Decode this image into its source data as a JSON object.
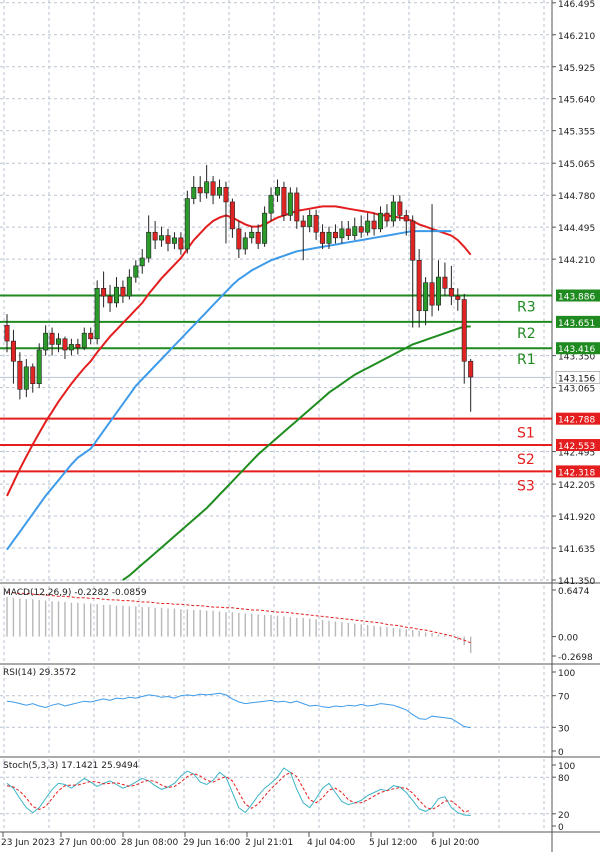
{
  "colors": {
    "background": "#ffffff",
    "grid": "#b9c3d3",
    "candle_up": "#2a9a2a",
    "candle_down": "#e02424",
    "ma_fast": "#e41e1e",
    "ma_mid": "#3d9be9",
    "ma_slow": "#1e8c1e",
    "resistance": "#1f8a1f",
    "support": "#e41e1e",
    "price_line": "#b8c4d4",
    "macd_bars": "#b8b8b8",
    "macd_signal": "#e41e1e",
    "rsi_line": "#3d9be9",
    "stoch_main": "#3db5c8",
    "stoch_signal": "#e41e1e",
    "axis_text": "#222222",
    "sr_label": "#ffffff"
  },
  "chart_data": [
    {
      "type": "candlestick",
      "pane": "price",
      "ylim": [
        141.35,
        146.52
      ],
      "yticks": [
        "146.495",
        "146.210",
        "145.925",
        "145.640",
        "145.355",
        "145.065",
        "144.780",
        "144.495",
        "144.210",
        "143.350",
        "143.065",
        "142.495",
        "142.205",
        "141.920",
        "141.635",
        "141.350"
      ],
      "xticks": [
        "23 Jun 2023",
        "27 Jun 00:00",
        "28 Jun 08:00",
        "29 Jun 16:00",
        "2 Jul 21:01",
        "4 Jul 04:00",
        "5 Jul 12:00",
        "6 Jul 20:00"
      ],
      "current_price": 143.156,
      "current_price_label": "143.156",
      "levels": [
        {
          "name": "R3",
          "value": 143.886,
          "label": "143.886",
          "kind": "resistance"
        },
        {
          "name": "R2",
          "value": 143.651,
          "label": "143.651",
          "kind": "resistance"
        },
        {
          "name": "R1",
          "value": 143.416,
          "label": "143.416",
          "kind": "resistance"
        },
        {
          "name": "S1",
          "value": 142.788,
          "label": "142.788",
          "kind": "support"
        },
        {
          "name": "S2",
          "value": 142.553,
          "label": "142.553",
          "kind": "support"
        },
        {
          "name": "S3",
          "value": 142.318,
          "label": "142.318",
          "kind": "support"
        }
      ],
      "candles": [
        [
          143.62,
          143.48,
          143.72,
          143.38
        ],
        [
          143.48,
          143.3,
          143.58,
          143.1
        ],
        [
          143.3,
          143.05,
          143.38,
          142.96
        ],
        [
          143.05,
          143.25,
          143.32,
          142.98
        ],
        [
          143.25,
          143.1,
          143.28,
          143.02
        ],
        [
          143.1,
          143.4,
          143.46,
          143.06
        ],
        [
          143.4,
          143.55,
          143.62,
          143.35
        ],
        [
          143.55,
          143.45,
          143.6,
          143.35
        ],
        [
          143.45,
          143.5,
          143.55,
          143.38
        ],
        [
          143.5,
          143.4,
          143.52,
          143.32
        ],
        [
          143.4,
          143.45,
          143.5,
          143.35
        ],
        [
          143.45,
          143.42,
          143.5,
          143.36
        ],
        [
          143.42,
          143.55,
          143.6,
          143.4
        ],
        [
          143.55,
          143.5,
          143.6,
          143.45
        ],
        [
          143.5,
          143.95,
          144.02,
          143.45
        ],
        [
          143.95,
          143.88,
          144.1,
          143.78
        ],
        [
          143.88,
          143.82,
          143.98,
          143.74
        ],
        [
          143.82,
          143.96,
          144.05,
          143.78
        ],
        [
          143.96,
          143.88,
          144.02,
          143.82
        ],
        [
          143.88,
          144.05,
          144.12,
          143.85
        ],
        [
          144.05,
          144.15,
          144.2,
          144.0
        ],
        [
          144.15,
          144.22,
          144.3,
          144.08
        ],
        [
          144.22,
          144.45,
          144.6,
          144.18
        ],
        [
          144.45,
          144.38,
          144.55,
          144.3
        ],
        [
          144.38,
          144.42,
          144.5,
          144.32
        ],
        [
          144.42,
          144.35,
          144.48,
          144.28
        ],
        [
          144.35,
          144.4,
          144.45,
          144.3
        ],
        [
          144.4,
          144.3,
          144.45,
          144.25
        ],
        [
          144.3,
          144.75,
          144.82,
          144.26
        ],
        [
          144.75,
          144.85,
          144.95,
          144.7
        ],
        [
          144.85,
          144.8,
          144.95,
          144.72
        ],
        [
          144.8,
          144.9,
          145.05,
          144.75
        ],
        [
          144.9,
          144.78,
          144.95,
          144.7
        ],
        [
          144.78,
          144.85,
          144.92,
          144.75
        ],
        [
          144.85,
          144.72,
          144.9,
          144.35
        ],
        [
          144.72,
          144.48,
          144.75,
          144.4
        ],
        [
          144.48,
          144.3,
          144.55,
          144.22
        ],
        [
          144.3,
          144.4,
          144.45,
          144.25
        ],
        [
          144.4,
          144.45,
          144.5,
          144.35
        ],
        [
          144.45,
          144.35,
          144.52,
          144.3
        ],
        [
          144.35,
          144.62,
          144.68,
          144.32
        ],
        [
          144.62,
          144.78,
          144.85,
          144.55
        ],
        [
          144.78,
          144.85,
          144.92,
          144.72
        ],
        [
          144.85,
          144.6,
          144.9,
          144.55
        ],
        [
          144.6,
          144.8,
          144.85,
          144.55
        ],
        [
          144.8,
          144.55,
          144.85,
          144.48
        ],
        [
          144.55,
          144.5,
          144.6,
          144.2
        ],
        [
          144.5,
          144.6,
          144.65,
          144.45
        ],
        [
          144.6,
          144.45,
          144.65,
          144.38
        ],
        [
          144.45,
          144.35,
          144.52,
          144.3
        ],
        [
          144.35,
          144.45,
          144.5,
          144.3
        ],
        [
          144.45,
          144.4,
          144.52,
          144.35
        ],
        [
          144.4,
          144.48,
          144.55,
          144.35
        ],
        [
          144.48,
          144.42,
          144.55,
          144.38
        ],
        [
          144.42,
          144.5,
          144.58,
          144.38
        ],
        [
          144.5,
          144.45,
          144.6,
          144.4
        ],
        [
          144.45,
          144.55,
          144.62,
          144.42
        ],
        [
          144.55,
          144.48,
          144.62,
          144.42
        ],
        [
          144.48,
          144.62,
          144.68,
          144.45
        ],
        [
          144.62,
          144.55,
          144.7,
          144.5
        ],
        [
          144.55,
          144.72,
          144.78,
          144.5
        ],
        [
          144.72,
          144.6,
          144.78,
          144.55
        ],
        [
          144.6,
          144.55,
          144.65,
          144.42
        ],
        [
          144.55,
          144.2,
          144.6,
          143.6
        ],
        [
          144.2,
          143.75,
          144.3,
          143.6
        ],
        [
          143.75,
          144.0,
          144.05,
          143.62
        ],
        [
          144.0,
          143.8,
          144.7,
          143.7
        ],
        [
          143.8,
          144.05,
          144.2,
          143.75
        ],
        [
          144.05,
          143.95,
          144.18,
          143.88
        ],
        [
          143.95,
          143.88,
          144.15,
          143.8
        ],
        [
          143.88,
          143.85,
          143.95,
          143.75
        ],
        [
          143.85,
          143.3,
          143.9,
          143.1
        ],
        [
          143.3,
          143.16,
          143.32,
          142.85
        ]
      ],
      "series": [
        {
          "name": "",
          "kind": "ma_fast",
          "values": [
            142.1,
            142.22,
            142.34,
            142.45,
            142.56,
            142.66,
            142.76,
            142.85,
            142.94,
            143.02,
            143.1,
            143.17,
            143.24,
            143.3,
            143.38,
            143.45,
            143.52,
            143.58,
            143.64,
            143.7,
            143.76,
            143.82,
            143.9,
            143.97,
            144.04,
            144.1,
            144.16,
            144.22,
            144.3,
            144.38,
            144.44,
            144.5,
            144.55,
            144.58,
            144.6,
            144.58,
            144.55,
            144.52,
            144.5,
            144.5,
            144.52,
            144.55,
            144.58,
            144.6,
            144.62,
            144.64,
            144.65,
            144.66,
            144.67,
            144.68,
            144.68,
            144.68,
            144.67,
            144.66,
            144.65,
            144.64,
            144.63,
            144.62,
            144.6,
            144.6,
            144.59,
            144.58,
            144.57,
            144.55,
            144.52,
            144.5,
            144.48,
            144.46,
            144.44,
            144.42,
            144.38,
            144.32,
            144.25
          ]
        },
        {
          "name": "",
          "kind": "ma_mid",
          "values": [
            141.62,
            141.7,
            141.78,
            141.86,
            141.94,
            142.02,
            142.1,
            142.17,
            142.24,
            142.31,
            142.38,
            142.44,
            142.48,
            142.52,
            142.6,
            142.68,
            142.76,
            142.84,
            142.92,
            143.0,
            143.08,
            143.14,
            143.2,
            143.26,
            143.32,
            143.38,
            143.44,
            143.5,
            143.56,
            143.62,
            143.68,
            143.74,
            143.8,
            143.86,
            143.92,
            143.98,
            144.03,
            144.07,
            144.11,
            144.14,
            144.17,
            144.2,
            144.22,
            144.24,
            144.26,
            144.28,
            144.29,
            144.3,
            144.31,
            144.32,
            144.33,
            144.34,
            144.35,
            144.36,
            144.37,
            144.38,
            144.39,
            144.4,
            144.41,
            144.42,
            144.43,
            144.44,
            144.45,
            144.46,
            144.46,
            144.46,
            144.46,
            144.46,
            144.46,
            144.46,
            null,
            null,
            null
          ]
        },
        {
          "name": "",
          "kind": "ma_slow",
          "values": [
            null,
            null,
            null,
            null,
            null,
            null,
            null,
            null,
            null,
            null,
            null,
            null,
            null,
            null,
            null,
            null,
            null,
            null,
            141.35,
            141.39,
            141.44,
            141.49,
            141.54,
            141.59,
            141.64,
            141.69,
            141.74,
            141.79,
            141.84,
            141.89,
            141.94,
            141.99,
            142.05,
            142.11,
            142.17,
            142.23,
            142.29,
            142.35,
            142.41,
            142.47,
            142.52,
            142.57,
            142.62,
            142.67,
            142.72,
            142.77,
            142.82,
            142.87,
            142.92,
            142.97,
            143.02,
            143.06,
            143.1,
            143.14,
            143.18,
            143.21,
            143.24,
            143.27,
            143.3,
            143.33,
            143.36,
            143.39,
            143.42,
            143.45,
            143.47,
            143.49,
            143.51,
            143.53,
            143.55,
            143.57,
            143.59,
            143.61,
            143.61
          ]
        }
      ]
    },
    {
      "type": "bar",
      "pane": "macd",
      "title": "MACD(12,26,9) -0.2282 -0.0859",
      "yticks": [
        "0.6474",
        "0.00",
        "-0.2698"
      ],
      "ylim": [
        -0.2698,
        0.6474
      ],
      "values": [
        0.55,
        0.54,
        0.53,
        0.52,
        0.52,
        0.51,
        0.5,
        0.49,
        0.49,
        0.48,
        0.47,
        0.47,
        0.46,
        0.46,
        0.45,
        0.44,
        0.44,
        0.43,
        0.43,
        0.42,
        0.42,
        0.41,
        0.41,
        0.4,
        0.4,
        0.39,
        0.39,
        0.38,
        0.38,
        0.37,
        0.37,
        0.36,
        0.36,
        0.35,
        0.34,
        0.34,
        0.33,
        0.32,
        0.32,
        0.31,
        0.3,
        0.3,
        0.29,
        0.28,
        0.27,
        0.26,
        0.26,
        0.25,
        0.24,
        0.23,
        0.22,
        0.21,
        0.2,
        0.19,
        0.18,
        0.17,
        0.16,
        0.15,
        0.14,
        0.13,
        0.12,
        0.11,
        0.1,
        0.09,
        0.08,
        0.06,
        0.05,
        0.03,
        0.02,
        0.01,
        -0.05,
        -0.12,
        -0.2282
      ],
      "signal": [
        0.62,
        0.61,
        0.6,
        0.6,
        0.59,
        0.58,
        0.58,
        0.57,
        0.56,
        0.56,
        0.55,
        0.54,
        0.54,
        0.53,
        0.53,
        0.52,
        0.51,
        0.51,
        0.5,
        0.5,
        0.49,
        0.48,
        0.48,
        0.47,
        0.46,
        0.46,
        0.45,
        0.45,
        0.44,
        0.43,
        0.43,
        0.42,
        0.41,
        0.41,
        0.4,
        0.4,
        0.39,
        0.38,
        0.37,
        0.37,
        0.36,
        0.35,
        0.34,
        0.34,
        0.33,
        0.32,
        0.31,
        0.3,
        0.29,
        0.28,
        0.27,
        0.26,
        0.25,
        0.24,
        0.23,
        0.22,
        0.21,
        0.2,
        0.19,
        0.17,
        0.16,
        0.15,
        0.13,
        0.12,
        0.1,
        0.09,
        0.07,
        0.05,
        0.03,
        0.01,
        -0.02,
        -0.05,
        -0.0859
      ]
    },
    {
      "type": "line",
      "pane": "rsi",
      "title": "RSI(14) 29.3572",
      "yticks": [
        "100",
        "70",
        "30",
        "0"
      ],
      "ylim": [
        0,
        100
      ],
      "values": [
        63,
        62,
        60,
        58,
        60,
        57,
        55,
        58,
        60,
        57,
        59,
        61,
        63,
        62,
        64,
        66,
        64,
        67,
        66,
        68,
        67,
        69,
        71,
        70,
        68,
        69,
        67,
        70,
        71,
        70,
        72,
        71,
        72,
        73,
        71,
        66,
        62,
        60,
        61,
        62,
        63,
        64,
        62,
        63,
        61,
        63,
        60,
        57,
        58,
        56,
        55,
        57,
        56,
        58,
        57,
        59,
        57,
        58,
        60,
        59,
        58,
        55,
        52,
        46,
        41,
        40,
        44,
        43,
        42,
        41,
        36,
        31,
        29.36
      ]
    },
    {
      "type": "line",
      "pane": "stoch",
      "title": "Stoch(5,3,3) 17.1421 25.9494",
      "yticks": [
        "100",
        "80",
        "20",
        "0"
      ],
      "ylim": [
        0,
        100
      ],
      "values": [
        70,
        62,
        45,
        30,
        22,
        30,
        45,
        60,
        70,
        68,
        62,
        70,
        78,
        72,
        65,
        70,
        74,
        68,
        62,
        66,
        72,
        78,
        74,
        66,
        60,
        64,
        70,
        82,
        90,
        85,
        72,
        68,
        75,
        88,
        80,
        55,
        30,
        22,
        35,
        50,
        62,
        70,
        80,
        95,
        88,
        60,
        38,
        30,
        45,
        62,
        70,
        55,
        40,
        35,
        38,
        42,
        50,
        55,
        60,
        58,
        66,
        64,
        55,
        42,
        28,
        24,
        30,
        45,
        48,
        30,
        22,
        18,
        17.14
      ],
      "signal": [
        66,
        64,
        57,
        46,
        32,
        27,
        32,
        45,
        58,
        66,
        67,
        67,
        70,
        73,
        72,
        69,
        70,
        71,
        68,
        65,
        67,
        72,
        75,
        73,
        67,
        63,
        65,
        72,
        81,
        86,
        82,
        75,
        72,
        77,
        81,
        74,
        55,
        36,
        29,
        36,
        49,
        61,
        71,
        82,
        88,
        81,
        62,
        43,
        38,
        46,
        59,
        62,
        55,
        43,
        38,
        38,
        43,
        49,
        55,
        58,
        61,
        63,
        62,
        54,
        42,
        31,
        27,
        33,
        41,
        41,
        33,
        23,
        25.95
      ]
    }
  ]
}
